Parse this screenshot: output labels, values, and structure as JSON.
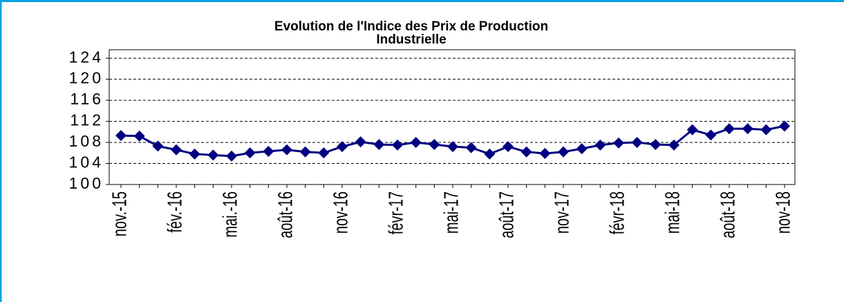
{
  "chart_data": {
    "type": "line",
    "title": [
      "Evolution de l'Indice des Prix de Production",
      "Industrielle"
    ],
    "categories": [
      "nov.-15",
      null,
      null,
      "fév.-16",
      null,
      null,
      "mai.-16",
      null,
      null,
      "août-16",
      null,
      null,
      "nov-16",
      null,
      null,
      "févr-17",
      null,
      null,
      "mai-17",
      null,
      null,
      "août-17",
      null,
      null,
      "nov-17",
      null,
      null,
      "févr-18",
      null,
      null,
      "mai-18",
      null,
      null,
      "août-18",
      null,
      null,
      "nov-18"
    ],
    "series": [
      {
        "color": "#000080",
        "values": [
          109.3,
          109.2,
          107.3,
          106.6,
          105.8,
          105.6,
          105.4,
          106.0,
          106.3,
          106.6,
          106.2,
          106.0,
          107.2,
          108.1,
          107.6,
          107.5,
          108.0,
          107.6,
          107.2,
          107.0,
          105.8,
          107.2,
          106.2,
          105.9,
          106.2,
          106.8,
          107.5,
          107.9,
          108.0,
          107.6,
          107.5,
          110.4,
          109.4,
          110.6,
          110.6,
          110.4,
          111.1
        ]
      }
    ],
    "ylim": [
      100,
      125.6
    ],
    "yticks": [
      100,
      104,
      108,
      112,
      116,
      120,
      124
    ],
    "grid": true
  }
}
